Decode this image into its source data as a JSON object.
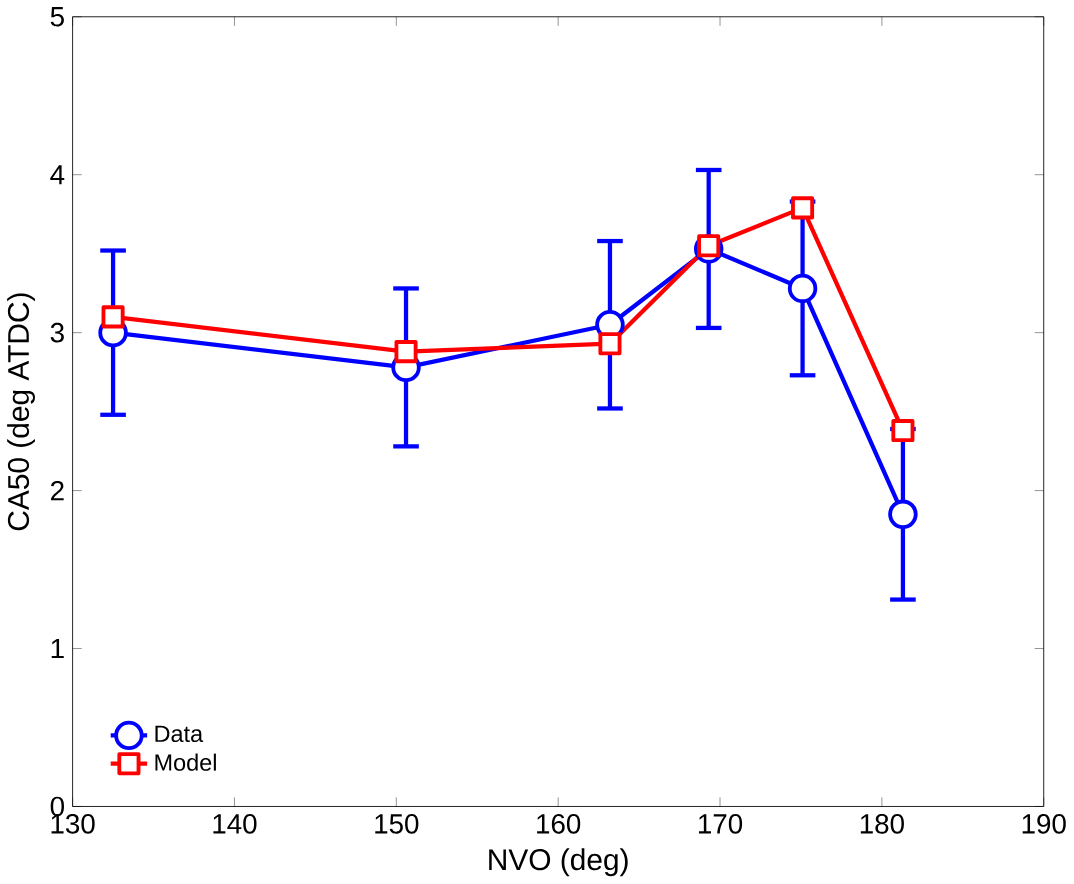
{
  "chart_data": {
    "type": "line",
    "xlabel": "NVO (deg)",
    "ylabel": "CA50 (deg ATDC)",
    "xlim": [
      130,
      190
    ],
    "ylim": [
      0,
      5
    ],
    "xticks": [
      130,
      140,
      150,
      160,
      170,
      180,
      190
    ],
    "yticks": [
      0,
      1,
      2,
      3,
      4,
      5
    ],
    "x": [
      132.5,
      150.6,
      163.2,
      169.3,
      175.1,
      181.3
    ],
    "series": [
      {
        "name": "Data",
        "color": "#0000ff",
        "marker": "circle",
        "values": [
          3.0,
          2.78,
          3.05,
          3.53,
          3.28,
          1.85
        ],
        "errors": [
          0.52,
          0.5,
          0.53,
          0.5,
          0.55,
          0.54
        ]
      },
      {
        "name": "Model",
        "color": "#ff0000",
        "marker": "square",
        "values": [
          3.1,
          2.88,
          2.93,
          3.55,
          3.79,
          2.38
        ]
      }
    ],
    "legend": "bottom left",
    "grid": false
  }
}
